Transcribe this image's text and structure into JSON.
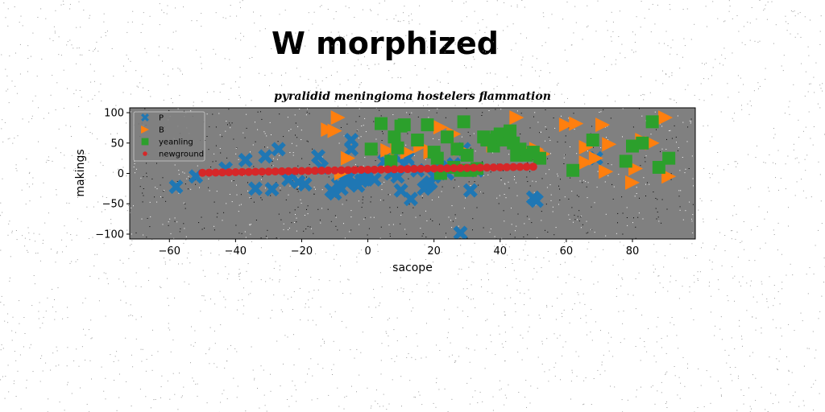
{
  "suptitle": "W morphized",
  "chart_data": {
    "type": "scatter",
    "title": "pyralidid meningioma hostelers flammation",
    "xlabel": "sacope",
    "ylabel": "makings",
    "xlim": [
      -72,
      99
    ],
    "ylim": [
      -108,
      108
    ],
    "xticks": [
      -60,
      -40,
      -20,
      0,
      20,
      40,
      60,
      80
    ],
    "yticks": [
      100,
      50,
      0,
      -50,
      -100
    ],
    "grid": false,
    "legend_position": "upper left",
    "colors": {
      "plot_background": "#808080",
      "page_background": "#ffffff"
    },
    "series": [
      {
        "name": "P",
        "marker": "X",
        "color": "#1f77b4",
        "points": [
          [
            -58,
            -22
          ],
          [
            -52,
            -5
          ],
          [
            -43,
            8
          ],
          [
            -37,
            22
          ],
          [
            -34,
            -25
          ],
          [
            -31,
            28
          ],
          [
            -29,
            -26
          ],
          [
            -27,
            40
          ],
          [
            -24,
            -10
          ],
          [
            -21,
            -14
          ],
          [
            -19,
            -18
          ],
          [
            -15,
            28
          ],
          [
            -14,
            10
          ],
          [
            -11,
            -28
          ],
          [
            -10,
            -33
          ],
          [
            -9,
            -18
          ],
          [
            -8,
            -25
          ],
          [
            -7,
            -12
          ],
          [
            -6,
            -8
          ],
          [
            -5,
            40
          ],
          [
            -5,
            55
          ],
          [
            -4,
            -15
          ],
          [
            -3,
            -20
          ],
          [
            -2,
            -12
          ],
          [
            -1,
            -10
          ],
          [
            0,
            -5
          ],
          [
            2,
            -10
          ],
          [
            5,
            20
          ],
          [
            7,
            0
          ],
          [
            8,
            30
          ],
          [
            9,
            -5
          ],
          [
            10,
            -28
          ],
          [
            11,
            15
          ],
          [
            12,
            25
          ],
          [
            13,
            -42
          ],
          [
            15,
            5
          ],
          [
            17,
            -25
          ],
          [
            18,
            -20
          ],
          [
            19,
            -15
          ],
          [
            20,
            -5
          ],
          [
            22,
            10
          ],
          [
            24,
            0
          ],
          [
            26,
            15
          ],
          [
            28,
            -98
          ],
          [
            29,
            40
          ],
          [
            31,
            -28
          ],
          [
            33,
            5
          ],
          [
            50,
            -40
          ],
          [
            51,
            -45
          ],
          [
            69,
            25
          ]
        ]
      },
      {
        "name": "B",
        "marker": ">",
        "color": "#ff7f0e",
        "points": [
          [
            -12,
            72
          ],
          [
            -10,
            70
          ],
          [
            -9,
            92
          ],
          [
            -8,
            0
          ],
          [
            -6,
            25
          ],
          [
            6,
            38
          ],
          [
            9,
            40
          ],
          [
            12,
            35
          ],
          [
            16,
            45
          ],
          [
            19,
            35
          ],
          [
            22,
            76
          ],
          [
            26,
            65
          ],
          [
            28,
            40
          ],
          [
            38,
            46
          ],
          [
            45,
            92
          ],
          [
            49,
            35
          ],
          [
            51,
            40
          ],
          [
            53,
            32
          ],
          [
            60,
            80
          ],
          [
            63,
            82
          ],
          [
            66,
            43
          ],
          [
            66,
            18
          ],
          [
            69,
            25
          ],
          [
            71,
            80
          ],
          [
            72,
            3
          ],
          [
            73,
            48
          ],
          [
            80,
            -15
          ],
          [
            81,
            8
          ],
          [
            83,
            55
          ],
          [
            86,
            50
          ],
          [
            90,
            92
          ],
          [
            91,
            -5
          ]
        ]
      },
      {
        "name": "yeanling",
        "color": "#2ca02c",
        "marker": "s",
        "points": [
          [
            1,
            40
          ],
          [
            4,
            82
          ],
          [
            7,
            20
          ],
          [
            8,
            60
          ],
          [
            9,
            42
          ],
          [
            10,
            78
          ],
          [
            11,
            80
          ],
          [
            15,
            55
          ],
          [
            18,
            80
          ],
          [
            20,
            35
          ],
          [
            21,
            25
          ],
          [
            22,
            0
          ],
          [
            24,
            60
          ],
          [
            26,
            10
          ],
          [
            27,
            40
          ],
          [
            28,
            5
          ],
          [
            29,
            85
          ],
          [
            30,
            30
          ],
          [
            31,
            5
          ],
          [
            33,
            8
          ],
          [
            35,
            60
          ],
          [
            36,
            55
          ],
          [
            38,
            45
          ],
          [
            39,
            60
          ],
          [
            40,
            65
          ],
          [
            41,
            55
          ],
          [
            43,
            70
          ],
          [
            44,
            50
          ],
          [
            45,
            30
          ],
          [
            46,
            40
          ],
          [
            48,
            30
          ],
          [
            50,
            35
          ],
          [
            52,
            25
          ],
          [
            62,
            5
          ],
          [
            68,
            55
          ],
          [
            78,
            20
          ],
          [
            80,
            45
          ],
          [
            83,
            50
          ],
          [
            86,
            85
          ],
          [
            88,
            10
          ],
          [
            91,
            25
          ]
        ]
      },
      {
        "name": "newground",
        "color": "#d62728",
        "marker": "o",
        "points": [
          [
            -50,
            1
          ],
          [
            -48,
            1.2
          ],
          [
            -46,
            1.4
          ],
          [
            -44,
            1.6
          ],
          [
            -42,
            1.8
          ],
          [
            -40,
            2
          ],
          [
            -38,
            2.2
          ],
          [
            -36,
            2.4
          ],
          [
            -34,
            2.6
          ],
          [
            -32,
            2.8
          ],
          [
            -30,
            3
          ],
          [
            -28,
            3.2
          ],
          [
            -26,
            3.4
          ],
          [
            -24,
            3.6
          ],
          [
            -22,
            3.8
          ],
          [
            -20,
            4
          ],
          [
            -18,
            4.2
          ],
          [
            -16,
            4.4
          ],
          [
            -14,
            4.6
          ],
          [
            -12,
            4.8
          ],
          [
            -10,
            5
          ],
          [
            -8,
            5.2
          ],
          [
            -6,
            5.4
          ],
          [
            -4,
            5.6
          ],
          [
            -2,
            5.8
          ],
          [
            0,
            6
          ],
          [
            2,
            6.2
          ],
          [
            4,
            6.4
          ],
          [
            6,
            6.6
          ],
          [
            8,
            6.8
          ],
          [
            10,
            7
          ],
          [
            12,
            7.2
          ],
          [
            14,
            7.4
          ],
          [
            16,
            7.6
          ],
          [
            18,
            7.8
          ],
          [
            20,
            8
          ],
          [
            22,
            8.2
          ],
          [
            24,
            8.4
          ],
          [
            26,
            8.6
          ],
          [
            28,
            8.8
          ],
          [
            30,
            9
          ],
          [
            32,
            9.2
          ],
          [
            34,
            9.4
          ],
          [
            36,
            9.6
          ],
          [
            38,
            9.8
          ],
          [
            40,
            10
          ],
          [
            42,
            10.2
          ],
          [
            44,
            10.4
          ],
          [
            46,
            10.6
          ],
          [
            48,
            10.8
          ],
          [
            50,
            11
          ]
        ]
      }
    ]
  }
}
